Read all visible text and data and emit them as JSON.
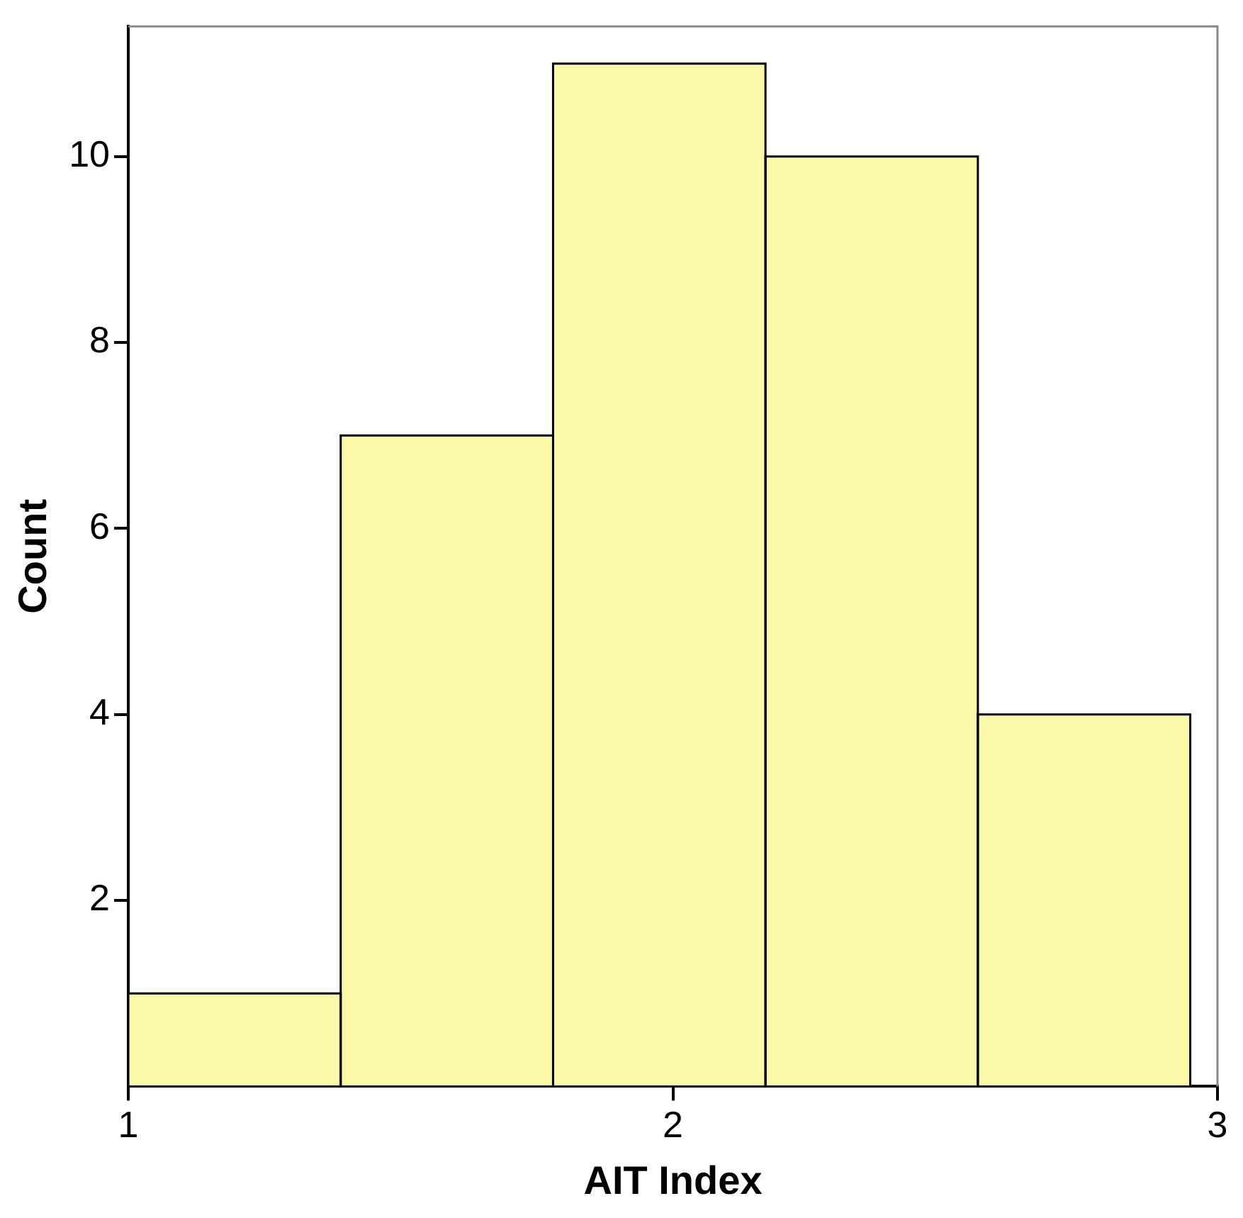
{
  "chart_data": {
    "type": "histogram",
    "xlabel": "AIT Index",
    "ylabel": "Count",
    "bins": [
      1.0,
      1.39,
      1.78,
      2.17,
      2.56,
      2.95
    ],
    "values": [
      1,
      7,
      11,
      10,
      4
    ],
    "color": "#fbf8a8",
    "xlim": [
      1,
      3
    ],
    "xticks": [
      1,
      2,
      3
    ],
    "ylim": [
      0,
      11.4
    ],
    "yticks": [
      2,
      4,
      6,
      8,
      10
    ],
    "grid": false,
    "legend": false
  }
}
